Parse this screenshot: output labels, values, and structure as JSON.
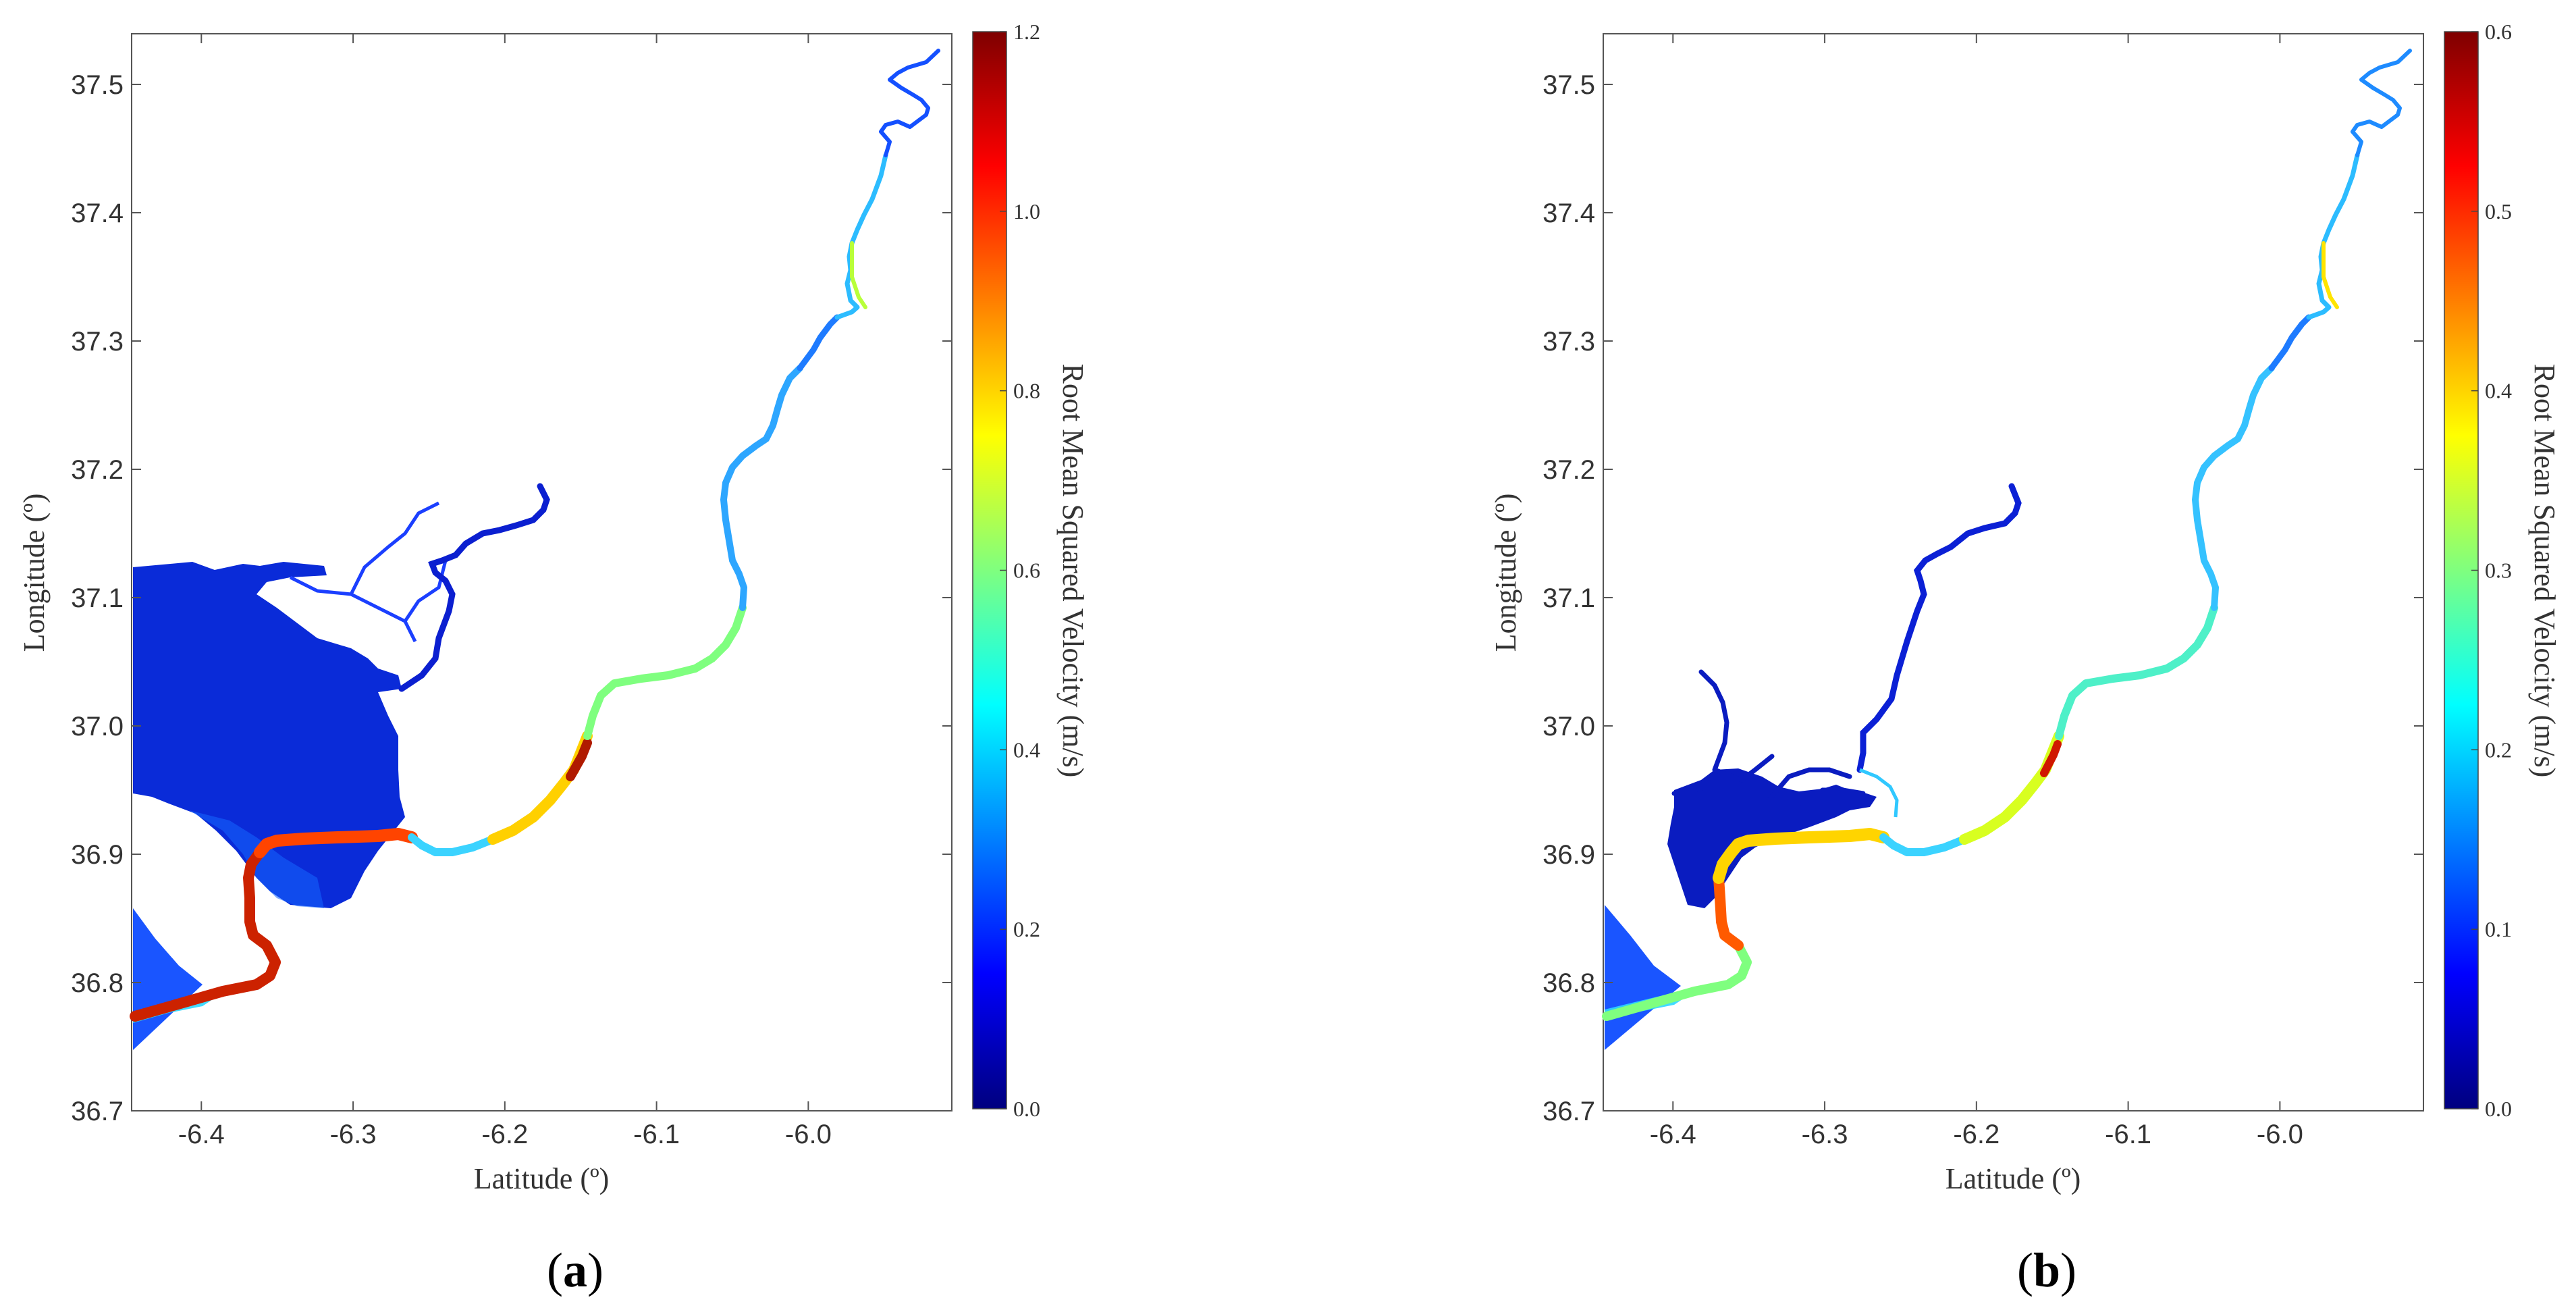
{
  "colorbar_colors": [
    "#00007f",
    "#0000ff",
    "#007fff",
    "#00ffff",
    "#7fff7f",
    "#ffff00",
    "#ff7f00",
    "#ff0000",
    "#7f0000"
  ],
  "panels": [
    {
      "id": "a",
      "label_open": "(",
      "label_letter": "a",
      "label_close": ")",
      "xlabel": "Latitude (º)",
      "ylabel": "Longitude (º)",
      "x_ticks": [
        "-6.4",
        "-6.3",
        "-6.2",
        "-6.1",
        "-6.0"
      ],
      "y_ticks": [
        "36.7",
        "36.8",
        "36.9",
        "37.0",
        "37.1",
        "37.2",
        "37.3",
        "37.4",
        "37.5"
      ],
      "colorbar_label": "Root Mean Squared Velocity (m/s)",
      "colorbar_ticks": [
        "0.0",
        "0.2",
        "0.4",
        "0.6",
        "0.8",
        "1.0",
        "1.2"
      ]
    },
    {
      "id": "b",
      "label_open": "(",
      "label_letter": "b",
      "label_close": ")",
      "xlabel": "Latitude (º)",
      "ylabel": "Longitude (º)",
      "x_ticks": [
        "-6.4",
        "-6.3",
        "-6.2",
        "-6.1",
        "-6.0"
      ],
      "y_ticks": [
        "36.7",
        "36.8",
        "36.9",
        "37.0",
        "37.1",
        "37.2",
        "37.3",
        "37.4",
        "37.5"
      ],
      "colorbar_label": "Root Mean Squared Velocity (m/s)",
      "colorbar_ticks": [
        "0.0",
        "0.1",
        "0.2",
        "0.3",
        "0.4",
        "0.5",
        "0.6"
      ]
    }
  ]
}
